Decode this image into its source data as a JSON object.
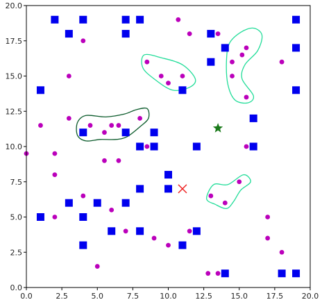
{
  "chart_data": {
    "type": "scatter",
    "title": "",
    "xlabel": "",
    "ylabel": "",
    "xlim": [
      0,
      20
    ],
    "ylim": [
      0,
      20
    ],
    "grid": false,
    "x_ticks": [
      "0.0",
      "2.5",
      "5.0",
      "7.5",
      "10.0",
      "12.5",
      "15.0",
      "17.5",
      "20.0"
    ],
    "y_ticks": [
      "0.0",
      "2.5",
      "5.0",
      "7.5",
      "10.0",
      "12.5",
      "15.0",
      "17.5",
      "20.0"
    ],
    "colors": {
      "squares": "#0000ee",
      "dots": "#bb00bb",
      "star": "#1a7a1a",
      "cross": "#ee2222",
      "contour_light": "#22dd99",
      "contour_dark": "#0a5a2a"
    },
    "series": [
      {
        "marker": "square",
        "points": [
          [
            2,
            19
          ],
          [
            4,
            19
          ],
          [
            7,
            19
          ],
          [
            8,
            19
          ],
          [
            19,
            19
          ],
          [
            3,
            18
          ],
          [
            7,
            18
          ],
          [
            13,
            18
          ],
          [
            14,
            17
          ],
          [
            19,
            17
          ],
          [
            13,
            16
          ],
          [
            1,
            14
          ],
          [
            11,
            14
          ],
          [
            19,
            14
          ],
          [
            16,
            12
          ],
          [
            4,
            11
          ],
          [
            7,
            11
          ],
          [
            9,
            11
          ],
          [
            8,
            10
          ],
          [
            9,
            10
          ],
          [
            12,
            10
          ],
          [
            16,
            10
          ],
          [
            10,
            8
          ],
          [
            8,
            7
          ],
          [
            10,
            7
          ],
          [
            3,
            6
          ],
          [
            5,
            6
          ],
          [
            7,
            6
          ],
          [
            1,
            5
          ],
          [
            4,
            5
          ],
          [
            6,
            4
          ],
          [
            8,
            4
          ],
          [
            12,
            4
          ],
          [
            4,
            3
          ],
          [
            11,
            3
          ],
          [
            14,
            1
          ],
          [
            18,
            1
          ],
          [
            19,
            1
          ]
        ]
      },
      {
        "marker": "dot",
        "points": [
          [
            10.7,
            19
          ],
          [
            11.5,
            18
          ],
          [
            13.5,
            18
          ],
          [
            4,
            17.5
          ],
          [
            15.2,
            16.5
          ],
          [
            15.5,
            17
          ],
          [
            8.5,
            16
          ],
          [
            14.5,
            16
          ],
          [
            18,
            16
          ],
          [
            9.5,
            15
          ],
          [
            10,
            14.5
          ],
          [
            11,
            15
          ],
          [
            3,
            15
          ],
          [
            14.5,
            15
          ],
          [
            15.5,
            13.5
          ],
          [
            3,
            12
          ],
          [
            8,
            12
          ],
          [
            1,
            11.5
          ],
          [
            4.5,
            11.5
          ],
          [
            6,
            11.5
          ],
          [
            6.5,
            11.5
          ],
          [
            5.5,
            11
          ],
          [
            8.5,
            10
          ],
          [
            15.5,
            10
          ],
          [
            0,
            9.5
          ],
          [
            2,
            9.5
          ],
          [
            5.5,
            9
          ],
          [
            6.5,
            9
          ],
          [
            2,
            8
          ],
          [
            15,
            7.5
          ],
          [
            4,
            6.5
          ],
          [
            13,
            6.5
          ],
          [
            14,
            6
          ],
          [
            6,
            5.5
          ],
          [
            2,
            5
          ],
          [
            17,
            5
          ],
          [
            7,
            4
          ],
          [
            11.5,
            4
          ],
          [
            9,
            3.5
          ],
          [
            17,
            3.5
          ],
          [
            10,
            3
          ],
          [
            18,
            2.5
          ],
          [
            5,
            1.5
          ],
          [
            12.8,
            1
          ],
          [
            13.5,
            1
          ]
        ]
      },
      {
        "marker": "star",
        "points": [
          [
            13.5,
            11.3
          ]
        ]
      },
      {
        "marker": "x",
        "points": [
          [
            11,
            7
          ]
        ]
      }
    ],
    "contours": [
      {
        "style": "light",
        "points": [
          [
            8.3,
            16.5
          ],
          [
            9.5,
            16.3
          ],
          [
            11,
            15.8
          ],
          [
            11.9,
            14.8
          ],
          [
            11.5,
            14.2
          ],
          [
            10.3,
            14
          ],
          [
            9,
            14.8
          ],
          [
            8.2,
            15.6
          ]
        ]
      },
      {
        "style": "light",
        "points": [
          [
            14.1,
            16
          ],
          [
            14.3,
            17.3
          ],
          [
            15.1,
            18.1
          ],
          [
            16,
            18.4
          ],
          [
            16.6,
            17.9
          ],
          [
            16.3,
            16.8
          ],
          [
            15.4,
            15.8
          ],
          [
            15.2,
            14.8
          ],
          [
            16,
            13.6
          ],
          [
            15.6,
            13.1
          ],
          [
            14.7,
            13.3
          ],
          [
            14.2,
            14.4
          ]
        ]
      },
      {
        "style": "light",
        "points": [
          [
            12.7,
            6.3
          ],
          [
            13.2,
            7.3
          ],
          [
            14.2,
            7.3
          ],
          [
            15.3,
            8
          ],
          [
            15.8,
            7.5
          ],
          [
            15.1,
            6.9
          ],
          [
            14.6,
            6.1
          ],
          [
            14.1,
            5.6
          ],
          [
            13.3,
            5.9
          ]
        ]
      },
      {
        "style": "dark",
        "points": [
          [
            3.6,
            10.8
          ],
          [
            3.6,
            11.7
          ],
          [
            4.2,
            12.2
          ],
          [
            5.6,
            12.1
          ],
          [
            6.9,
            12.3
          ],
          [
            7.7,
            12.6
          ],
          [
            8.5,
            12.7
          ],
          [
            8.6,
            12
          ],
          [
            8,
            11.4
          ],
          [
            7.1,
            10.7
          ],
          [
            6.3,
            10.5
          ],
          [
            5.2,
            10.5
          ],
          [
            4.2,
            10.4
          ]
        ]
      }
    ]
  }
}
